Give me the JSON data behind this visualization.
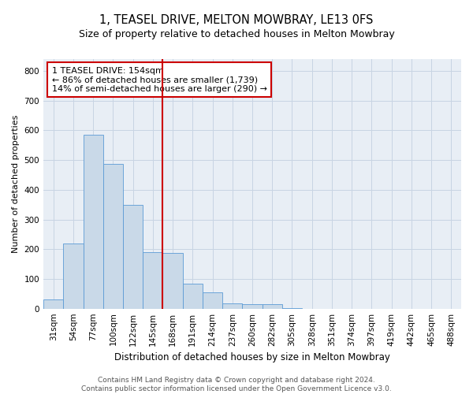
{
  "title": "1, TEASEL DRIVE, MELTON MOWBRAY, LE13 0FS",
  "subtitle": "Size of property relative to detached houses in Melton Mowbray",
  "xlabel": "Distribution of detached houses by size in Melton Mowbray",
  "ylabel": "Number of detached properties",
  "categories": [
    "31sqm",
    "54sqm",
    "77sqm",
    "100sqm",
    "122sqm",
    "145sqm",
    "168sqm",
    "191sqm",
    "214sqm",
    "237sqm",
    "260sqm",
    "282sqm",
    "305sqm",
    "328sqm",
    "351sqm",
    "374sqm",
    "397sqm",
    "419sqm",
    "442sqm",
    "465sqm",
    "488sqm"
  ],
  "values": [
    30,
    218,
    585,
    488,
    350,
    190,
    188,
    83,
    55,
    18,
    14,
    14,
    3,
    0,
    0,
    0,
    0,
    0,
    0,
    0,
    0
  ],
  "bar_color": "#c9d9e8",
  "bar_edge_color": "#5b9bd5",
  "vline_x": 6.0,
  "vline_color": "#cc0000",
  "annotation_text": "1 TEASEL DRIVE: 154sqm\n← 86% of detached houses are smaller (1,739)\n14% of semi-detached houses are larger (290) →",
  "ylim": [
    0,
    840
  ],
  "yticks": [
    0,
    100,
    200,
    300,
    400,
    500,
    600,
    700,
    800
  ],
  "grid_color": "#c8d4e3",
  "bg_color": "#e8eef5",
  "footer": "Contains HM Land Registry data © Crown copyright and database right 2024.\nContains public sector information licensed under the Open Government Licence v3.0.",
  "title_fontsize": 10.5,
  "subtitle_fontsize": 9,
  "xlabel_fontsize": 8.5,
  "ylabel_fontsize": 8,
  "tick_fontsize": 7.5,
  "annotation_fontsize": 8,
  "footer_fontsize": 6.5
}
